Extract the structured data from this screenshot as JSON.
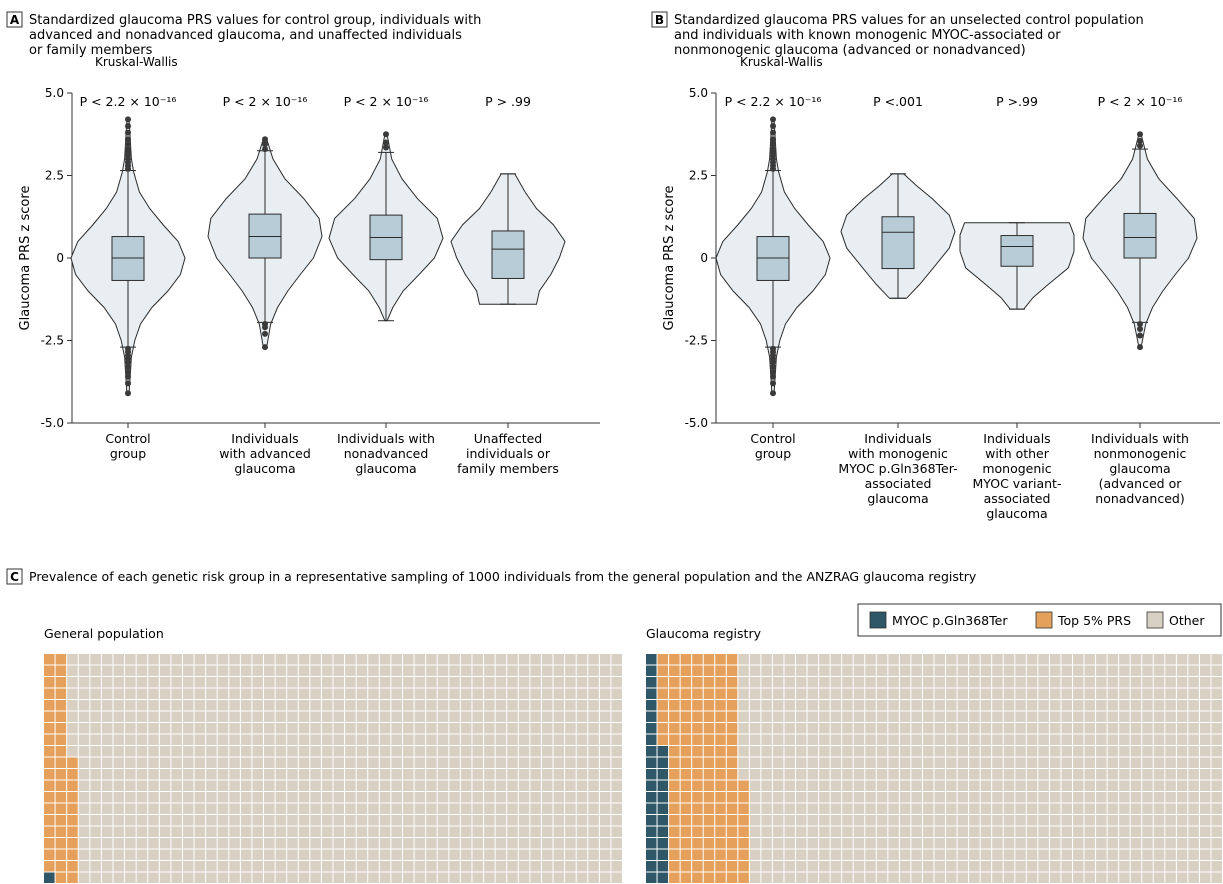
{
  "colors": {
    "violin_fill": "#e8eef2",
    "box_fill": "#b7ccd6",
    "myoc": "#2f5767",
    "top5": "#e5a05b",
    "other": "#d8d0c3",
    "grid_line": "#ffffff",
    "outlier": "#3a3a3a"
  },
  "panels": {
    "A": {
      "letter": "A",
      "title_lines": [
        "Standardized glaucoma PRS values for control group, individuals with",
        "advanced and nonadvanced glaucoma, and unaffected individuals",
        "or family members"
      ]
    },
    "B": {
      "letter": "B",
      "title_lines": [
        "Standardized glaucoma PRS values for an unselected control population",
        "and individuals with known monogenic MYOC-associated or",
        "nonmonogenic glaucoma (advanced or nonadvanced)"
      ]
    },
    "C": {
      "letter": "C",
      "title": "Prevalence of each genetic risk group in a representative sampling of 1000 individuals from the general population and the ANZRAG glaucoma registry"
    }
  },
  "chart_data": [
    {
      "type": "violin",
      "panel": "A",
      "ylabel": "Glaucoma PRS z score",
      "ylim": [
        -5.0,
        5.0
      ],
      "yticks": [
        {
          "v": 5.0,
          "label": "5.0"
        },
        {
          "v": 2.5,
          "label": "2.5"
        },
        {
          "v": 0,
          "label": "0"
        },
        {
          "v": -2.5,
          "label": "-2.5"
        },
        {
          "v": -5.0,
          "label": "-5.0"
        }
      ],
      "test_label": "Kruskal-Wallis",
      "groups": [
        {
          "label_lines": [
            "Control",
            "group"
          ],
          "pvalue": "P < 2.2 × 10⁻¹⁶",
          "box": {
            "q1": -0.68,
            "median": 0.0,
            "q3": 0.65,
            "whisker_low": -2.7,
            "whisker_high": 2.65
          },
          "range": [
            -4.1,
            4.2
          ],
          "density": [
            [
              -4.1,
              0.02
            ],
            [
              -3.0,
              0.06
            ],
            [
              -2.5,
              0.12
            ],
            [
              -2.0,
              0.22
            ],
            [
              -1.5,
              0.42
            ],
            [
              -1.0,
              0.7
            ],
            [
              -0.5,
              0.92
            ],
            [
              0.0,
              1.0
            ],
            [
              0.5,
              0.88
            ],
            [
              1.0,
              0.62
            ],
            [
              1.5,
              0.38
            ],
            [
              2.0,
              0.2
            ],
            [
              2.6,
              0.1
            ],
            [
              3.0,
              0.06
            ],
            [
              4.2,
              0.02
            ]
          ],
          "outliers_low": [
            -2.75,
            -2.85,
            -2.95,
            -3.05,
            -3.15,
            -3.3,
            -3.45,
            -3.6,
            -3.8,
            -4.1
          ],
          "outliers_high": [
            2.7,
            2.8,
            2.9,
            3.0,
            3.1,
            3.2,
            3.3,
            3.45,
            3.6,
            3.8,
            4.0,
            4.2
          ]
        },
        {
          "label_lines": [
            "Individuals",
            "with advanced",
            "glaucoma"
          ],
          "pvalue": "P < 2 × 10⁻¹⁶",
          "box": {
            "q1": 0.0,
            "median": 0.65,
            "q3": 1.33,
            "whisker_low": -1.95,
            "whisker_high": 3.25
          },
          "range": [
            -2.7,
            3.6
          ],
          "density": [
            [
              -2.7,
              0.03
            ],
            [
              -2.0,
              0.1
            ],
            [
              -1.5,
              0.22
            ],
            [
              -1.0,
              0.4
            ],
            [
              -0.5,
              0.62
            ],
            [
              0.0,
              0.85
            ],
            [
              0.65,
              1.0
            ],
            [
              1.2,
              0.95
            ],
            [
              1.8,
              0.68
            ],
            [
              2.4,
              0.35
            ],
            [
              3.0,
              0.14
            ],
            [
              3.6,
              0.03
            ]
          ],
          "outliers_low": [
            -2.0,
            -2.1,
            -2.3,
            -2.7
          ],
          "outliers_high": [
            3.3,
            3.45,
            3.6
          ]
        },
        {
          "label_lines": [
            "Individuals with",
            "nonadvanced",
            "glaucoma"
          ],
          "pvalue": "P < 2 × 10⁻¹⁶",
          "box": {
            "q1": -0.05,
            "median": 0.62,
            "q3": 1.3,
            "whisker_low": -1.9,
            "whisker_high": 3.2
          },
          "range": [
            -1.9,
            3.75
          ],
          "density": [
            [
              -1.9,
              0.02
            ],
            [
              -1.5,
              0.12
            ],
            [
              -1.0,
              0.3
            ],
            [
              -0.5,
              0.58
            ],
            [
              0.0,
              0.85
            ],
            [
              0.6,
              1.0
            ],
            [
              1.2,
              0.9
            ],
            [
              1.8,
              0.55
            ],
            [
              2.4,
              0.28
            ],
            [
              3.0,
              0.1
            ],
            [
              3.75,
              0.02
            ]
          ],
          "outliers_low": [],
          "outliers_high": [
            3.35,
            3.5,
            3.75
          ]
        },
        {
          "label_lines": [
            "Unaffected",
            "individuals or",
            "family members"
          ],
          "pvalue": "P > .99",
          "box": {
            "q1": -0.62,
            "median": 0.27,
            "q3": 0.82,
            "whisker_low": -1.4,
            "whisker_high": 2.55
          },
          "range": [
            -1.4,
            2.55
          ],
          "density": [
            [
              -1.4,
              0.5
            ],
            [
              -1.0,
              0.55
            ],
            [
              -0.5,
              0.75
            ],
            [
              0.0,
              0.9
            ],
            [
              0.5,
              1.0
            ],
            [
              1.0,
              0.8
            ],
            [
              1.5,
              0.5
            ],
            [
              2.0,
              0.3
            ],
            [
              2.55,
              0.12
            ]
          ],
          "outliers_low": [],
          "outliers_high": []
        }
      ]
    },
    {
      "type": "violin",
      "panel": "B",
      "ylabel": "Glaucoma PRS z score",
      "ylim": [
        -5.0,
        5.0
      ],
      "yticks": [
        {
          "v": 5.0,
          "label": "5.0"
        },
        {
          "v": 2.5,
          "label": "2.5"
        },
        {
          "v": 0,
          "label": "0"
        },
        {
          "v": -2.5,
          "label": "-2.5"
        },
        {
          "v": -5.0,
          "label": "-5.0"
        }
      ],
      "test_label": "Kruskal-Wallis",
      "groups": [
        {
          "label_lines": [
            "Control",
            "group"
          ],
          "pvalue": "P < 2.2 × 10⁻¹⁶",
          "box": {
            "q1": -0.68,
            "median": 0.0,
            "q3": 0.65,
            "whisker_low": -2.7,
            "whisker_high": 2.65
          },
          "range": [
            -4.1,
            4.2
          ],
          "density": [
            [
              -4.1,
              0.02
            ],
            [
              -3.0,
              0.06
            ],
            [
              -2.5,
              0.12
            ],
            [
              -2.0,
              0.22
            ],
            [
              -1.5,
              0.42
            ],
            [
              -1.0,
              0.7
            ],
            [
              -0.5,
              0.92
            ],
            [
              0.0,
              1.0
            ],
            [
              0.5,
              0.88
            ],
            [
              1.0,
              0.62
            ],
            [
              1.5,
              0.38
            ],
            [
              2.0,
              0.2
            ],
            [
              2.6,
              0.1
            ],
            [
              3.0,
              0.06
            ],
            [
              4.2,
              0.02
            ]
          ],
          "outliers_low": [
            -2.75,
            -2.85,
            -2.95,
            -3.05,
            -3.15,
            -3.3,
            -3.45,
            -3.6,
            -3.8,
            -4.1
          ],
          "outliers_high": [
            2.7,
            2.8,
            2.9,
            3.0,
            3.1,
            3.2,
            3.3,
            3.45,
            3.6,
            3.8,
            4.0,
            4.2
          ]
        },
        {
          "label_lines": [
            "Individuals",
            "with monogenic",
            "MYOC p.Gln368Ter-",
            "associated",
            "glaucoma"
          ],
          "pvalue": "P <.001",
          "box": {
            "q1": -0.32,
            "median": 0.78,
            "q3": 1.25,
            "whisker_low": -1.22,
            "whisker_high": 2.55
          },
          "range": [
            -1.22,
            2.55
          ],
          "density": [
            [
              -1.22,
              0.15
            ],
            [
              -0.8,
              0.38
            ],
            [
              -0.3,
              0.62
            ],
            [
              0.3,
              0.9
            ],
            [
              0.8,
              1.0
            ],
            [
              1.3,
              0.9
            ],
            [
              1.8,
              0.6
            ],
            [
              2.2,
              0.32
            ],
            [
              2.55,
              0.1
            ]
          ],
          "outliers_low": [],
          "outliers_high": []
        },
        {
          "label_lines": [
            "Individuals",
            "with other",
            "monogenic",
            "MYOC variant-",
            "associated",
            "glaucoma"
          ],
          "pvalue": "P >.99",
          "box": {
            "q1": -0.25,
            "median": 0.35,
            "q3": 0.68,
            "whisker_low": -1.55,
            "whisker_high": 1.07
          },
          "range": [
            -1.55,
            1.07
          ],
          "density": [
            [
              -1.55,
              0.12
            ],
            [
              -1.2,
              0.28
            ],
            [
              -0.8,
              0.55
            ],
            [
              -0.3,
              0.9
            ],
            [
              0.2,
              1.0
            ],
            [
              0.7,
              1.0
            ],
            [
              1.07,
              0.92
            ]
          ],
          "outliers_low": [],
          "outliers_high": []
        },
        {
          "label_lines": [
            "Individuals with",
            "nonmonogenic",
            "glaucoma",
            "(advanced or",
            "nonadvanced)"
          ],
          "pvalue": "P < 2 × 10⁻¹⁶",
          "box": {
            "q1": 0.0,
            "median": 0.62,
            "q3": 1.35,
            "whisker_low": -1.95,
            "whisker_high": 3.3
          },
          "range": [
            -2.7,
            3.75
          ],
          "density": [
            [
              -2.7,
              0.02
            ],
            [
              -2.0,
              0.1
            ],
            [
              -1.5,
              0.22
            ],
            [
              -1.0,
              0.4
            ],
            [
              -0.5,
              0.62
            ],
            [
              0.0,
              0.85
            ],
            [
              0.6,
              1.0
            ],
            [
              1.2,
              0.95
            ],
            [
              1.8,
              0.65
            ],
            [
              2.4,
              0.33
            ],
            [
              3.0,
              0.13
            ],
            [
              3.75,
              0.02
            ]
          ],
          "outliers_low": [
            -2.0,
            -2.15,
            -2.35,
            -2.7
          ],
          "outliers_high": [
            3.4,
            3.55,
            3.75
          ]
        }
      ]
    },
    {
      "type": "waffle",
      "panel": "C",
      "legend": [
        {
          "key": "myoc",
          "label": "MYOC p.Gln368Ter"
        },
        {
          "key": "top5",
          "label": "Top 5% PRS"
        },
        {
          "key": "other",
          "label": "Other"
        }
      ],
      "panels": [
        {
          "title": "General population",
          "total": 1000,
          "counts": {
            "myoc": 1,
            "top5": 50,
            "other": 949
          }
        },
        {
          "title": "Glaucoma registry",
          "total": 1000,
          "counts": {
            "myoc": 32,
            "top5": 137,
            "other": 831
          }
        }
      ]
    }
  ]
}
